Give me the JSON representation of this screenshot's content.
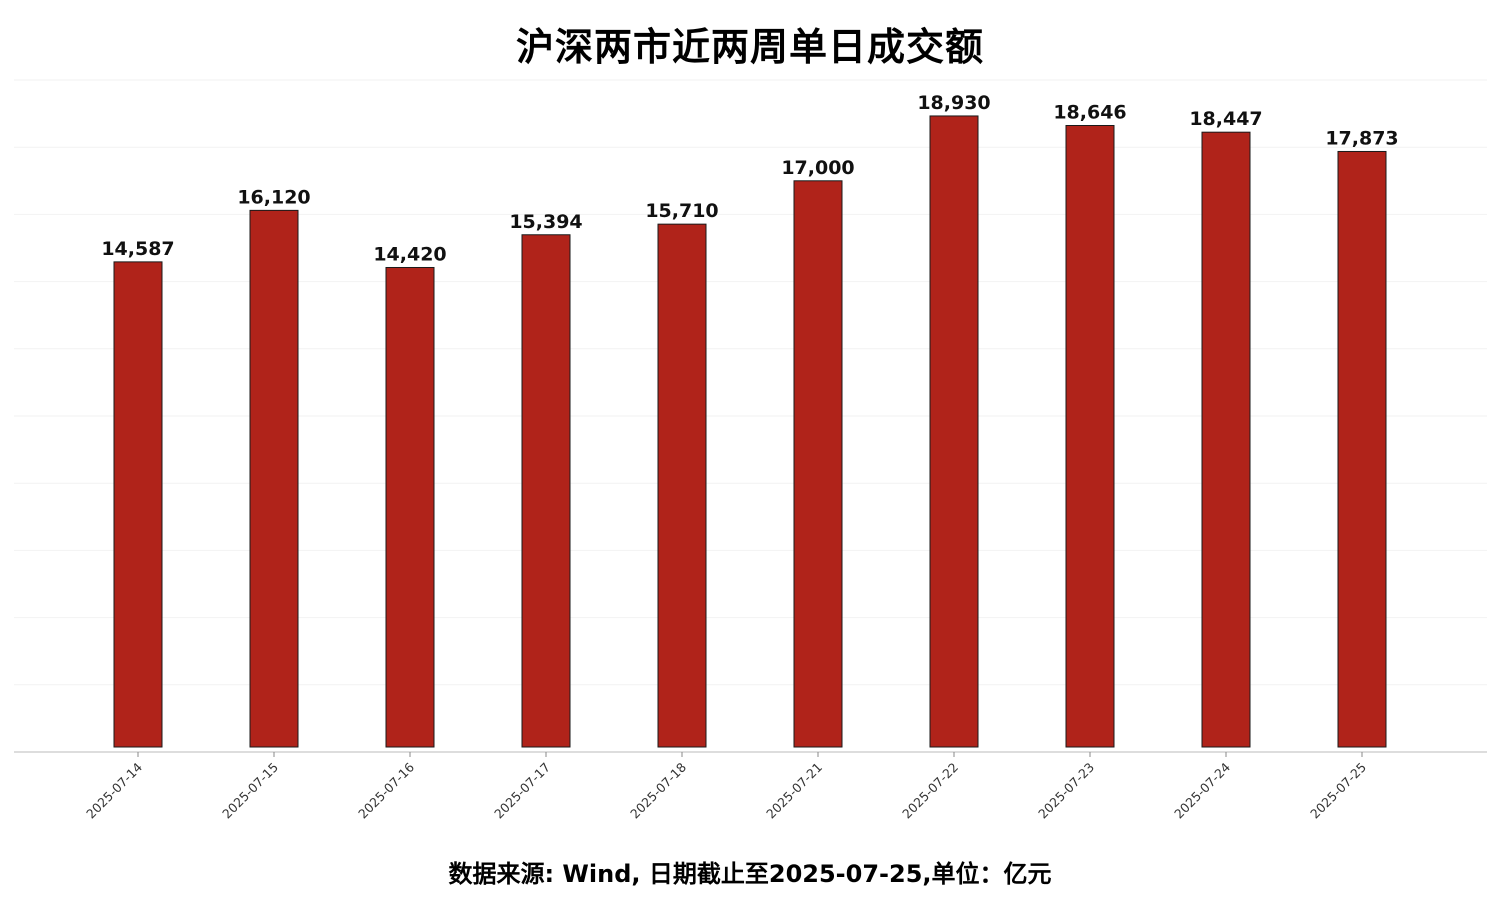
{
  "chart_data": {
    "type": "bar",
    "title": "沪深两市近两周单日成交额",
    "subtitle": "",
    "xlabel": "",
    "ylabel": "",
    "categories": [
      "2025-07-14",
      "2025-07-15",
      "2025-07-16",
      "2025-07-17",
      "2025-07-18",
      "2025-07-21",
      "2025-07-22",
      "2025-07-23",
      "2025-07-24",
      "2025-07-25"
    ],
    "values": [
      14587,
      16120,
      14420,
      15394,
      15710,
      17000,
      18930,
      18646,
      18447,
      17873
    ],
    "value_labels": [
      "14,587",
      "16,120",
      "14,420",
      "15,394",
      "15,710",
      "17,000",
      "18,930",
      "18,646",
      "18,447",
      "17,873"
    ],
    "ylim": [
      0,
      20000
    ],
    "grid": true,
    "legend": "none",
    "bar_color": "#B0231A",
    "bar_edge_color": "#1a1a1a",
    "footnote": "数据来源: Wind, 日期截止至2025-07-25,单位：亿元"
  }
}
